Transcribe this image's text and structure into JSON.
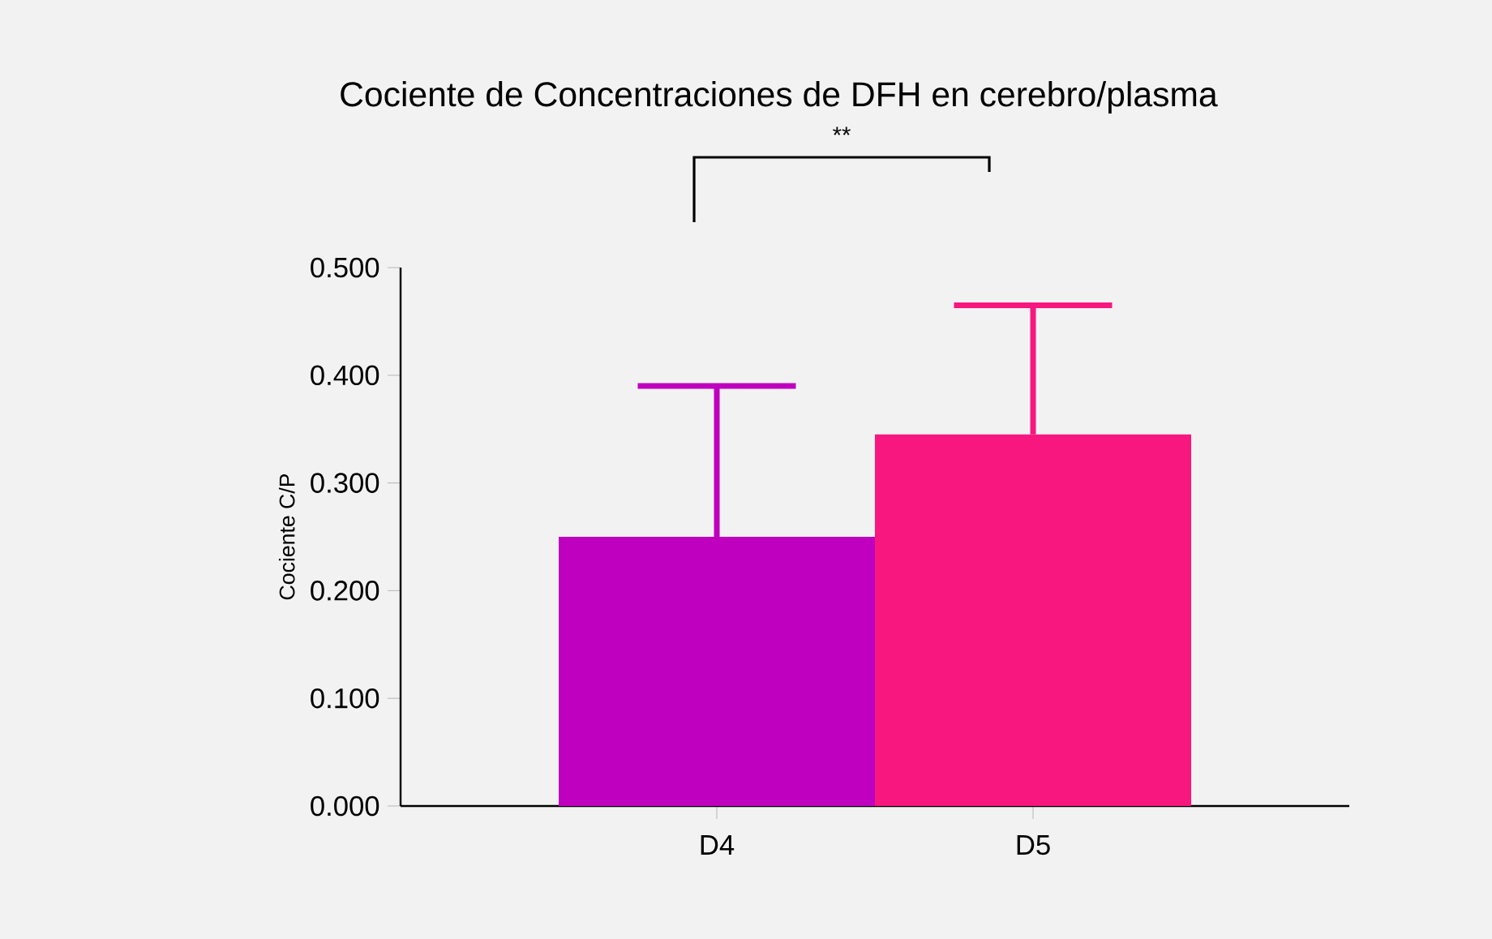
{
  "chart_data": {
    "type": "bar",
    "title": "Cociente de Concentraciones de DFH en cerebro/plasma",
    "ylabel": "Cociente C/P",
    "categories": [
      "D4",
      "D5"
    ],
    "values": [
      0.25,
      0.345
    ],
    "colors": [
      "#bf00bf",
      "#f7177f"
    ],
    "errors": [
      [
        0.25,
        0.39
      ],
      [
        0.345,
        0.465
      ]
    ],
    "ylim": [
      0,
      0.5
    ],
    "yticks": [
      {
        "value": 0,
        "label": "0.000"
      },
      {
        "value": 0.1,
        "label": "0.100"
      },
      {
        "value": 0.2,
        "label": "0.200"
      },
      {
        "value": 0.3,
        "label": "0.300"
      },
      {
        "value": 0.4,
        "label": "0.400"
      },
      {
        "value": 0.5,
        "label": "0.500"
      }
    ],
    "annotations": [
      "**"
    ],
    "grid": false
  }
}
